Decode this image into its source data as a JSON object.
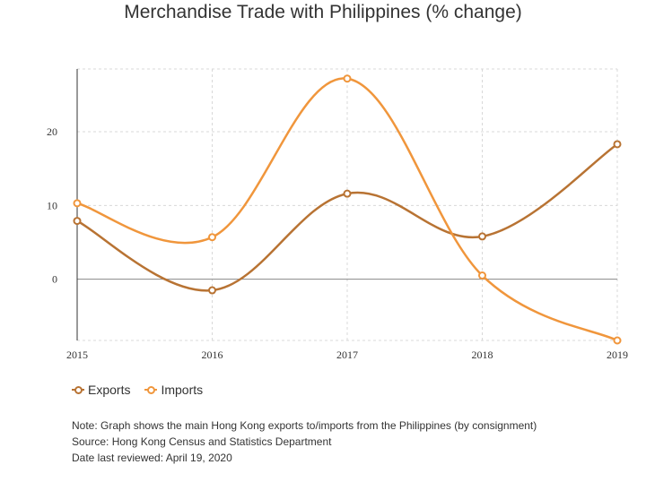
{
  "chart_data": {
    "type": "line",
    "title": "Merchandise Trade with Philippines (% change)",
    "x": [
      "2015",
      "2016",
      "2017",
      "2018",
      "2019"
    ],
    "series": [
      {
        "name": "Exports",
        "values": [
          7.9,
          -1.5,
          11.6,
          5.8,
          18.3
        ],
        "color": "#b87333"
      },
      {
        "name": "Imports",
        "values": [
          10.3,
          5.7,
          27.2,
          0.5,
          -8.3
        ],
        "color": "#f0963c"
      }
    ],
    "yticks": [
      0,
      10,
      20
    ],
    "ylim": [
      -8.3,
      28.5
    ],
    "grid": true,
    "legend_position": "bottom-left",
    "xlabel": "",
    "ylabel": ""
  },
  "notes": [
    "Note: Graph shows the main Hong Kong exports to/imports from the Philippines (by consignment)",
    "Source: Hong Kong Census and Statistics Department",
    "Date last reviewed: April 19, 2020"
  ]
}
